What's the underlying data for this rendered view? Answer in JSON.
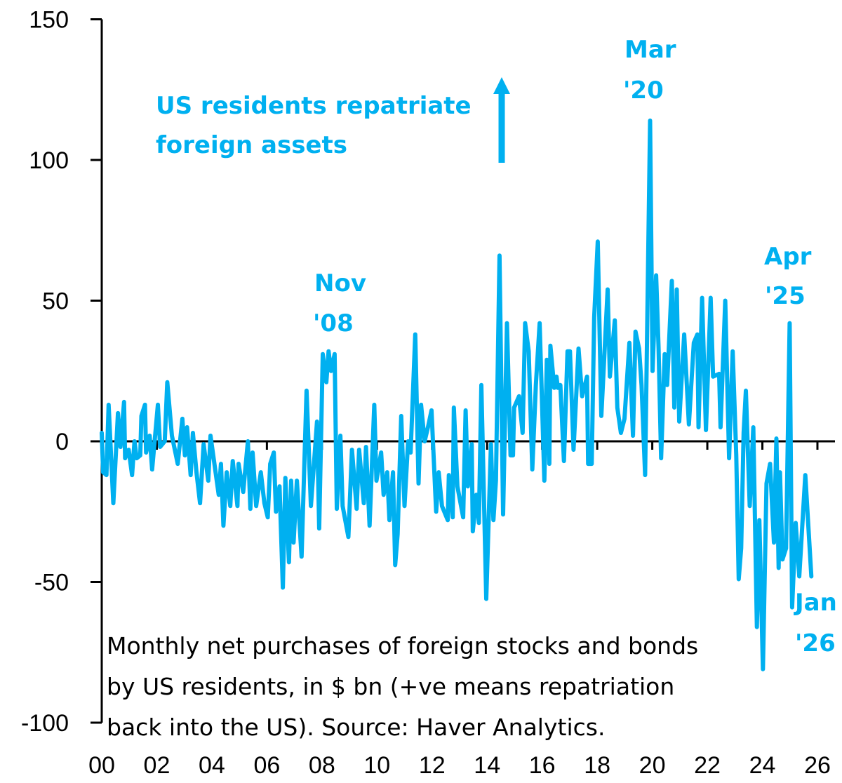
{
  "chart_data": {
    "type": "line",
    "title": "",
    "xlabel": "",
    "ylabel": "",
    "xlim": [
      0,
      26.5
    ],
    "ylim": [
      -100,
      150
    ],
    "grid": false,
    "x_tick_labels": [
      "00",
      "02",
      "04",
      "06",
      "08",
      "10",
      "12",
      "14",
      "16",
      "18",
      "20",
      "22",
      "24",
      "26"
    ],
    "y_tick_labels": [
      "150",
      "100",
      "50",
      "0",
      "-50",
      "-100"
    ],
    "y_ticks": [
      150,
      100,
      50,
      0,
      -50,
      -100
    ],
    "x_ticks": [
      0,
      2,
      4,
      6,
      8,
      10,
      12,
      14,
      16,
      18,
      20,
      22,
      24,
      26
    ],
    "color": "#00B0F0",
    "series": [
      {
        "x": [
          0.0,
          0.05,
          0.17,
          0.25,
          0.42,
          0.59,
          0.68,
          0.81,
          0.85,
          0.98,
          1.1,
          1.19,
          1.27,
          1.4,
          1.44,
          1.57,
          1.61,
          1.74,
          1.83,
          2.04,
          2.12,
          2.29,
          2.38,
          2.55,
          2.76,
          2.93,
          3.02,
          3.1,
          3.23,
          3.31,
          3.44,
          3.57,
          3.7,
          3.87,
          3.95,
          4.25,
          4.33,
          4.42,
          4.54,
          4.67,
          4.76,
          4.93,
          4.97,
          5.14,
          5.31,
          5.4,
          5.48,
          5.61,
          5.78,
          5.91,
          6.03,
          6.12,
          6.25,
          6.33,
          6.46,
          6.58,
          6.67,
          6.8,
          6.88,
          6.97,
          7.09,
          7.26,
          7.44,
          7.6,
          7.82,
          7.9,
          8.03,
          8.16,
          8.24,
          8.33,
          8.46,
          8.54,
          8.67,
          8.75,
          8.96,
          9.09,
          9.26,
          9.35,
          9.52,
          9.6,
          9.73,
          9.9,
          9.98,
          10.15,
          10.24,
          10.37,
          10.45,
          10.58,
          10.66,
          10.75,
          10.88,
          11.0,
          11.13,
          11.22,
          11.39,
          11.51,
          11.6,
          11.73,
          11.85,
          11.98,
          12.15,
          12.24,
          12.36,
          12.57,
          12.61,
          12.75,
          12.79,
          12.92,
          13.13,
          13.22,
          13.3,
          13.44,
          13.48,
          13.61,
          13.7,
          13.79,
          13.97,
          14.14,
          14.23,
          14.32,
          14.45,
          14.58,
          14.72,
          14.85,
          14.94,
          14.98,
          15.16,
          15.29,
          15.38,
          15.51,
          15.64,
          15.77,
          15.91,
          16.08,
          16.17,
          16.26,
          16.3,
          16.44,
          16.52,
          16.57,
          16.66,
          16.79,
          16.92,
          17.01,
          17.14,
          17.32,
          17.45,
          17.63,
          17.67,
          17.8,
          17.89,
          18.02,
          18.15,
          18.38,
          18.46,
          18.64,
          18.73,
          18.86,
          18.99,
          19.17,
          19.3,
          19.39,
          19.52,
          19.61,
          19.74,
          19.92,
          20.01,
          20.14,
          20.23,
          20.32,
          20.45,
          20.54,
          20.71,
          20.8,
          20.89,
          20.98,
          21.16,
          21.33,
          21.51,
          21.64,
          21.68,
          21.81,
          21.95,
          22.12,
          22.21,
          22.43,
          22.48,
          22.65,
          22.79,
          22.92,
          23.05,
          23.14,
          23.23,
          23.32,
          23.4,
          23.54,
          23.67,
          23.8,
          23.89,
          24.02,
          24.15,
          24.28,
          24.42,
          24.51,
          24.59,
          24.64,
          24.73,
          24.86,
          24.99,
          25.08,
          25.21,
          25.34,
          25.56,
          25.78
        ],
        "y": [
          3,
          -11,
          -12,
          13,
          -22,
          10,
          -2,
          14,
          -6,
          -3,
          -12,
          0,
          -6,
          -5,
          9,
          13,
          -4,
          2,
          -10,
          13,
          -2,
          0,
          21,
          2,
          -8,
          8,
          -5,
          5,
          -12,
          3,
          -11,
          -22,
          -1,
          -14,
          2,
          -19,
          -8,
          -30,
          -11,
          -23,
          -7,
          -23,
          -8,
          -18,
          0,
          -24,
          -4,
          -23,
          -11,
          -22,
          -27,
          -8,
          -4,
          -25,
          -16,
          -52,
          -13,
          -43,
          -14,
          -36,
          -14,
          -41,
          18,
          -23,
          7,
          -31,
          31,
          21,
          32,
          25,
          31,
          -24,
          2,
          -23,
          -34,
          -3,
          -24,
          -3,
          -22,
          -2,
          -30,
          13,
          -14,
          -4,
          -19,
          -11,
          -28,
          -11,
          -44,
          -33,
          9,
          -23,
          0,
          -4,
          38,
          -15,
          13,
          0,
          5,
          11,
          -25,
          -11,
          -23,
          -28,
          -12,
          -27,
          12,
          -16,
          -27,
          11,
          -16,
          -1,
          -32,
          -19,
          -29,
          20,
          -56,
          -1,
          -28,
          -14,
          66,
          -26,
          42,
          -5,
          -5,
          12,
          16,
          3,
          42,
          32,
          -10,
          20,
          42,
          -14,
          29,
          -8,
          34,
          19,
          23,
          19,
          20,
          -7,
          32,
          32,
          -3,
          33,
          16,
          23,
          -8,
          -8,
          44,
          71,
          9,
          54,
          23,
          43,
          12,
          3,
          8,
          35,
          2,
          39,
          33,
          20,
          -12,
          114,
          25,
          59,
          33,
          -6,
          31,
          20,
          57,
          12,
          54,
          7,
          38,
          6,
          35,
          38,
          5,
          51,
          4,
          51,
          23,
          24,
          5,
          50,
          -6,
          32,
          -5,
          -49,
          -38,
          3,
          18,
          -23,
          5,
          -66,
          -28,
          -81,
          -15,
          -8,
          -36,
          1,
          -45,
          -11,
          -42,
          -38,
          42,
          -59,
          -29,
          -48,
          -12,
          -48
        ]
      }
    ],
    "annotations": {
      "repatriate_line1": "US residents repatriate",
      "repatriate_line2": "foreign assets",
      "nov08_line1": "Nov",
      "nov08_line2": "'08",
      "mar20_line1": "Mar",
      "mar20_line2": "'20",
      "apr25_line1": "Apr",
      "apr25_line2": "'25",
      "jan26_line1": "Jan",
      "jan26_line2": "'26",
      "arrow_icon": "arrow-up"
    },
    "note": {
      "line1": "Monthly net purchases of foreign stocks and bonds",
      "line2": "by US residents, in $ bn (+ve means repatriation",
      "line3": "back into the US). Source: Haver Analytics."
    }
  }
}
